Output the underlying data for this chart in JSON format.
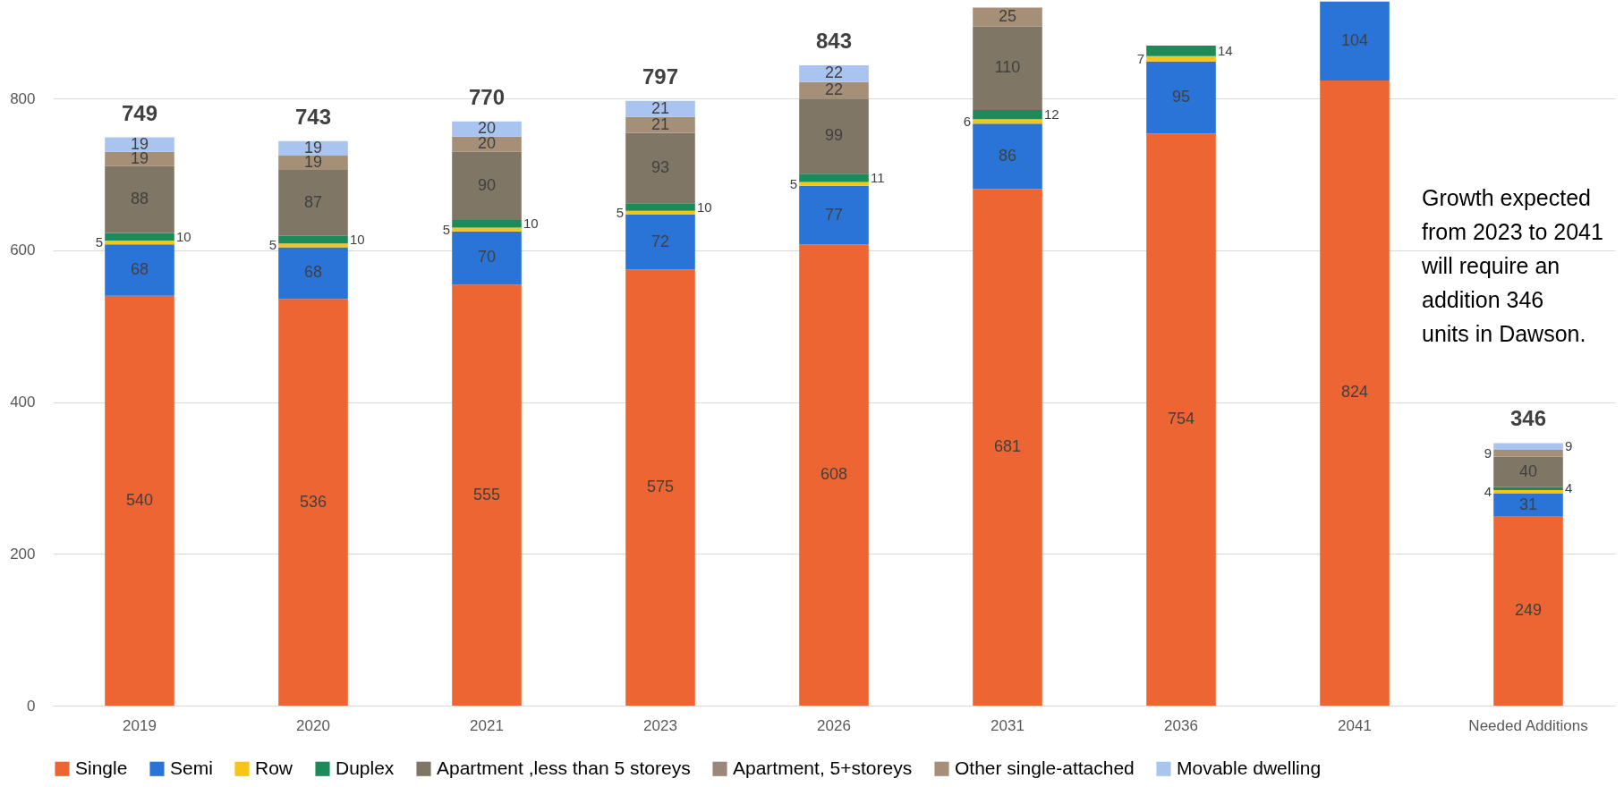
{
  "chart_data": {
    "type": "bar",
    "stacked": true,
    "categories": [
      "2019",
      "2020",
      "2021",
      "2023",
      "2026",
      "2031",
      "2036",
      "2041",
      "Needed Additions"
    ],
    "series": [
      {
        "name": "Single",
        "color": "#ed6532",
        "values": [
          540,
          536,
          555,
          575,
          608,
          681,
          754,
          824,
          249
        ]
      },
      {
        "name": "Semi",
        "color": "#2a74d8",
        "values": [
          68,
          68,
          70,
          72,
          77,
          86,
          95,
          104,
          31
        ]
      },
      {
        "name": "Row",
        "color": "#f5c518",
        "values": [
          5,
          5,
          5,
          5,
          5,
          6,
          7,
          null,
          4
        ]
      },
      {
        "name": "Duplex",
        "color": "#1c8a5a",
        "values": [
          10,
          10,
          10,
          10,
          11,
          12,
          14,
          null,
          4
        ]
      },
      {
        "name": "Apartment ,less than 5 storeys",
        "color": "#7f7666",
        "values": [
          88,
          87,
          90,
          93,
          99,
          110,
          null,
          null,
          40
        ]
      },
      {
        "name": "Apartment, 5+storeys",
        "color": "#9a8779",
        "values": [
          null,
          null,
          null,
          null,
          null,
          null,
          null,
          null,
          null
        ]
      },
      {
        "name": "Other single-attached",
        "color": "#a68f77",
        "values": [
          19,
          19,
          20,
          21,
          22,
          25,
          null,
          null,
          9
        ]
      },
      {
        "name": "Movable dwelling",
        "color": "#a9c5ef",
        "values": [
          19,
          19,
          20,
          21,
          22,
          null,
          null,
          null,
          9
        ]
      }
    ],
    "data_labels": true,
    "totals": [
      "749",
      "743",
      "770",
      "797",
      "843",
      null,
      null,
      null,
      "346"
    ],
    "ylim": [
      0,
      930
    ],
    "yticks": [
      0,
      200,
      400,
      600,
      800
    ],
    "grid": "y",
    "legend": "bottom",
    "annotations": [
      "Growth expected from 2023 to 2041 will require an addition 346 units in Dawson."
    ]
  }
}
